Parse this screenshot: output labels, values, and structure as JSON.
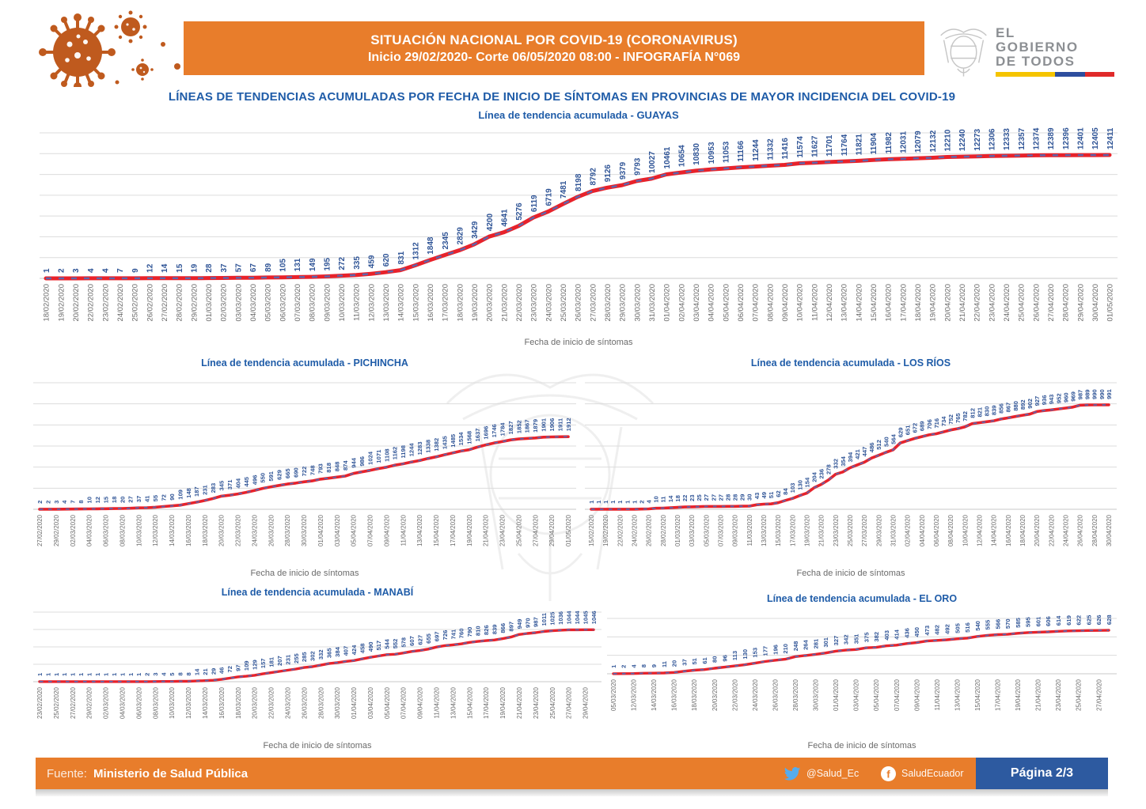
{
  "header": {
    "title_line1": "SITUACIÓN NACIONAL POR  COVID-19 (CORONAVIRUS)",
    "title_line2": "Inicio 29/02/2020- Corte 06/05/2020 08:00  - INFOGRAFÍA N°069",
    "logo_line1": "EL",
    "logo_line2": "GOBIERNO",
    "logo_line3": "DE TODOS"
  },
  "main_title": "LÍNEAS DE TENDENCIAS ACUMULADAS POR FECHA DE INICIO DE SÍNTOMAS EN PROVINCIAS DE MAYOR INCIDENCIA DEL COVID-19",
  "footer": {
    "source_label": "Fuente:",
    "source_value": "Ministerio de Salud Pública",
    "twitter": "@Salud_Ec",
    "facebook": "SaludEcuador",
    "page": "Página 2/3"
  },
  "colors": {
    "accent_orange": "#E87D2B",
    "title_blue": "#1F5CA8",
    "value_blue": "#2F5496",
    "line_red": "#E8222A",
    "dash_blue": "#4472C4",
    "tick_gray": "#6B6B6B",
    "grid_gray": "#DCDCDC",
    "axis_gray": "#C9C9C9",
    "page_navy": "#2D5AA0",
    "twitter_blue": "#55ACEE",
    "virus_orange": "#BF5A1E"
  },
  "chart_data": [
    {
      "id": "guayas",
      "type": "line",
      "title": "Línea de tendencia acumulada - GUAYAS",
      "xlabel": "Fecha de inicio de síntomas",
      "legend": "none",
      "grid": true,
      "ylim": [
        0,
        14000
      ],
      "x_label_step": 1,
      "x_labels": [
        "18/02/2020",
        "19/02/2020",
        "20/02/2020",
        "22/02/2020",
        "23/02/2020",
        "24/02/2020",
        "25/02/2020",
        "26/02/2020",
        "27/02/2020",
        "28/02/2020",
        "29/02/2020",
        "01/03/2020",
        "02/03/2020",
        "03/03/2020",
        "04/03/2020",
        "05/03/2020",
        "06/03/2020",
        "07/03/2020",
        "08/03/2020",
        "09/03/2020",
        "10/03/2020",
        "11/03/2020",
        "12/03/2020",
        "13/03/2020",
        "14/03/2020",
        "15/03/2020",
        "16/03/2020",
        "17/03/2020",
        "18/03/2020",
        "19/03/2020",
        "20/03/2020",
        "21/03/2020",
        "22/03/2020",
        "23/03/2020",
        "24/03/2020",
        "25/03/2020",
        "26/03/2020",
        "27/03/2020",
        "28/03/2020",
        "29/03/2020",
        "30/03/2020",
        "31/03/2020",
        "01/04/2020",
        "02/04/2020",
        "03/04/2020",
        "04/04/2020",
        "05/04/2020",
        "06/04/2020",
        "07/04/2020",
        "08/04/2020",
        "09/04/2020",
        "10/04/2020",
        "11/04/2020",
        "12/04/2020",
        "13/04/2020",
        "14/04/2020",
        "15/04/2020",
        "16/04/2020",
        "17/04/2020",
        "18/04/2020",
        "19/04/2020",
        "20/04/2020",
        "21/04/2020",
        "22/04/2020",
        "23/04/2020",
        "24/04/2020",
        "25/04/2020",
        "26/04/2020",
        "27/04/2020",
        "28/04/2020",
        "29/04/2020",
        "30/04/2020",
        "01/05/2020"
      ],
      "values": [
        1,
        2,
        3,
        4,
        4,
        7,
        9,
        12,
        14,
        15,
        19,
        28,
        37,
        57,
        67,
        89,
        105,
        131,
        149,
        195,
        272,
        335,
        459,
        620,
        831,
        1312,
        1848,
        2345,
        2829,
        3429,
        4200,
        4641,
        5276,
        6119,
        6719,
        7481,
        8198,
        8792,
        9126,
        9379,
        9793,
        10027,
        10461,
        10654,
        10830,
        10953,
        11053,
        11166,
        11244,
        11332,
        11416,
        11574,
        11627,
        11701,
        11764,
        11821,
        11904,
        11982,
        12031,
        12079,
        12132,
        12210,
        12240,
        12273,
        12306,
        12333,
        12357,
        12374,
        12389,
        12396,
        12401,
        12405,
        12411
      ]
    },
    {
      "id": "pichincha",
      "type": "line",
      "title": "Línea de tendencia acumulada - PICHINCHA",
      "xlabel": "Fecha de inicio de síntomas",
      "legend": "none",
      "grid": true,
      "ylim": [
        0,
        3000
      ],
      "x_label_step": 2,
      "x_labels": [
        "27/02/2020",
        "29/02/2020",
        "02/03/2020",
        "04/03/2020",
        "06/03/2020",
        "08/03/2020",
        "10/03/2020",
        "12/03/2020",
        "14/03/2020",
        "16/03/2020",
        "18/03/2020",
        "20/03/2020",
        "22/03/2020",
        "24/03/2020",
        "26/03/2020",
        "28/03/2020",
        "30/03/2020",
        "01/04/2020",
        "03/04/2020",
        "05/04/2020",
        "07/04/2020",
        "09/04/2020",
        "11/04/2020",
        "13/04/2020",
        "15/04/2020",
        "17/04/2020",
        "19/04/2020",
        "21/04/2020",
        "23/04/2020",
        "25/04/2020",
        "27/04/2020",
        "29/04/2020",
        "01/05/2020"
      ],
      "values": [
        2,
        2,
        3,
        4,
        7,
        8,
        10,
        12,
        15,
        18,
        20,
        27,
        37,
        41,
        55,
        72,
        90,
        109,
        148,
        187,
        231,
        283,
        345,
        371,
        404,
        445,
        496,
        550,
        591,
        629,
        665,
        690,
        722,
        748,
        793,
        818,
        848,
        874,
        944,
        986,
        1024,
        1071,
        1108,
        1162,
        1198,
        1244,
        1283,
        1338,
        1382,
        1435,
        1485,
        1534,
        1568,
        1637,
        1696,
        1746,
        1784,
        1827,
        1852,
        1867,
        1879,
        1901,
        1906,
        1911,
        1912
      ]
    },
    {
      "id": "losrios",
      "type": "line",
      "title": "Línea de tendencia acumulada - LOS RÍOS",
      "xlabel": "Fecha de inicio de síntomas",
      "legend": "none",
      "grid": true,
      "ylim": [
        0,
        1200
      ],
      "x_label_step": 2,
      "x_labels": [
        "15/02/2020",
        "19/02/2020",
        "22/02/2020",
        "24/02/2020",
        "26/02/2020",
        "28/02/2020",
        "01/03/2020",
        "03/03/2020",
        "05/03/2020",
        "07/03/2020",
        "09/03/2020",
        "11/03/2020",
        "13/03/2020",
        "15/03/2020",
        "17/03/2020",
        "19/03/2020",
        "21/03/2020",
        "23/03/2020",
        "25/03/2020",
        "27/03/2020",
        "29/03/2020",
        "31/03/2020",
        "02/04/2020",
        "04/04/2020",
        "06/04/2020",
        "08/04/2020",
        "10/04/2020",
        "12/04/2020",
        "14/04/2020",
        "16/04/2020",
        "18/04/2020",
        "20/04/2020",
        "22/04/2020",
        "24/04/2020",
        "26/04/2020",
        "28/04/2020",
        "30/04/2020"
      ],
      "values": [
        1,
        1,
        1,
        1,
        1,
        1,
        1,
        2,
        4,
        10,
        11,
        14,
        18,
        22,
        23,
        25,
        27,
        27,
        27,
        28,
        28,
        29,
        30,
        43,
        49,
        51,
        62,
        84,
        103,
        130,
        154,
        204,
        236,
        278,
        332,
        354,
        394,
        421,
        447,
        486,
        512,
        540,
        564,
        629,
        651,
        672,
        689,
        706,
        716,
        734,
        752,
        765,
        782,
        812,
        821,
        830,
        839,
        856,
        867,
        880,
        892,
        902,
        927,
        936,
        943,
        952,
        960,
        969,
        987,
        989,
        990,
        990,
        991
      ]
    },
    {
      "id": "manabi",
      "type": "line",
      "title": "Línea de tendencia acumulada - MANABÍ",
      "xlabel": "Fecha de inicio de síntomas",
      "legend": "none",
      "grid": true,
      "ylim": [
        0,
        1400
      ],
      "x_label_step": 2,
      "x_labels": [
        "23/02/2020",
        "25/02/2020",
        "27/02/2020",
        "29/02/2020",
        "02/03/2020",
        "04/03/2020",
        "06/03/2020",
        "08/03/2020",
        "10/03/2020",
        "12/03/2020",
        "14/03/2020",
        "16/03/2020",
        "18/03/2020",
        "20/03/2020",
        "22/03/2020",
        "24/03/2020",
        "26/03/2020",
        "28/03/2020",
        "30/03/2020",
        "01/04/2020",
        "03/04/2020",
        "05/04/2020",
        "07/04/2020",
        "09/04/2020",
        "11/04/2020",
        "13/04/2020",
        "15/04/2020",
        "17/04/2020",
        "19/04/2020",
        "21/04/2020",
        "23/04/2020",
        "25/04/2020",
        "27/04/2020",
        "29/04/2020"
      ],
      "values": [
        1,
        1,
        1,
        1,
        1,
        1,
        1,
        1,
        1,
        1,
        1,
        1,
        1,
        2,
        3,
        4,
        5,
        8,
        8,
        14,
        21,
        29,
        46,
        72,
        97,
        109,
        129,
        157,
        181,
        207,
        231,
        255,
        285,
        302,
        332,
        365,
        384,
        407,
        424,
        458,
        490,
        517,
        544,
        552,
        578,
        607,
        627,
        655,
        697,
        726,
        741,
        760,
        790,
        810,
        826,
        839,
        866,
        897,
        949,
        970,
        987,
        1011,
        1025,
        1036,
        1044,
        1044,
        1045,
        1046
      ]
    },
    {
      "id": "eloro",
      "type": "line",
      "title": "Línea de tendencia acumulada - EL ORO",
      "xlabel": "Fecha de inicio de síntomas",
      "legend": "none",
      "grid": true,
      "ylim": [
        0,
        800
      ],
      "x_label_step": 2,
      "x_labels": [
        "05/03/2020",
        "12/03/2020",
        "14/03/2020",
        "16/03/2020",
        "18/03/2020",
        "20/03/2020",
        "22/03/2020",
        "24/03/2020",
        "26/03/2020",
        "28/03/2020",
        "30/03/2020",
        "01/04/2020",
        "03/04/2020",
        "05/04/2020",
        "07/04/2020",
        "09/04/2020",
        "11/04/2020",
        "13/04/2020",
        "15/04/2020",
        "17/04/2020",
        "19/04/2020",
        "21/04/2020",
        "23/04/2020",
        "25/04/2020",
        "27/04/2020"
      ],
      "values": [
        1,
        2,
        4,
        8,
        9,
        11,
        20,
        37,
        51,
        61,
        80,
        96,
        113,
        130,
        153,
        177,
        196,
        210,
        248,
        264,
        281,
        301,
        327,
        342,
        351,
        375,
        382,
        403,
        414,
        436,
        450,
        473,
        482,
        492,
        505,
        516,
        540,
        555,
        566,
        570,
        585,
        595,
        601,
        606,
        614,
        619,
        622,
        625,
        626,
        628
      ]
    }
  ]
}
